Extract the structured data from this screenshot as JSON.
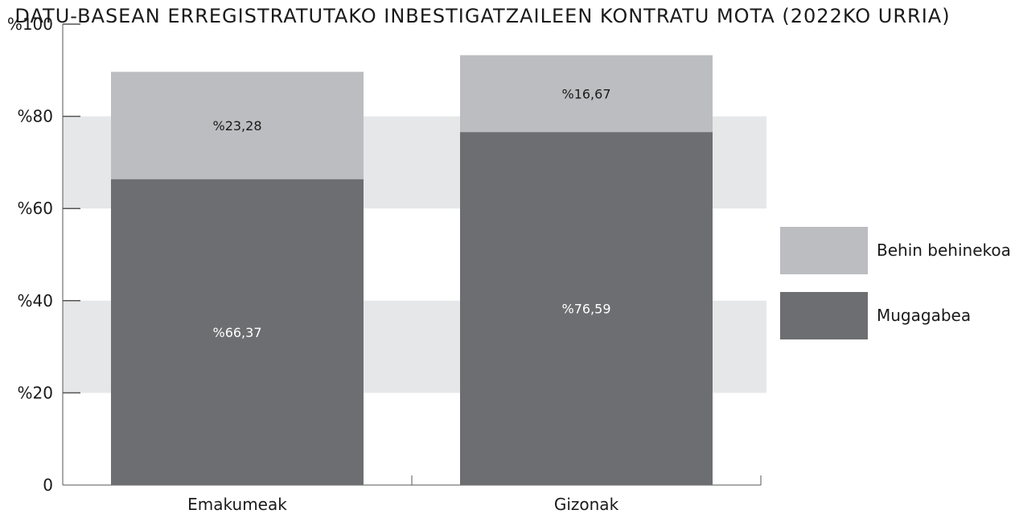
{
  "chart_data": {
    "type": "bar",
    "stacked": true,
    "title": "DATU-BASEAN ERREGISTRATUTAKO INBESTIGATZAILEEN KONTRATU MOTA (2022KO URRIA)",
    "categories": [
      "Emakumeak",
      "Gizonak"
    ],
    "series": [
      {
        "name": "Mugagabea",
        "values": [
          66.37,
          76.59
        ],
        "labels": [
          "%66,37",
          "%76,59"
        ],
        "color": "#6d6e71"
      },
      {
        "name": "Behin behinekoa",
        "values": [
          23.28,
          16.67
        ],
        "labels": [
          "%23,28",
          "%16,67"
        ],
        "color": "#bcbdc0"
      }
    ],
    "ylim": [
      0,
      100
    ],
    "yticks": [
      0,
      20,
      40,
      60,
      80,
      100
    ],
    "ytick_labels": [
      "0",
      "%20",
      "%40",
      "%60",
      "%80",
      "%100"
    ],
    "band_color": "#e6e7e8",
    "legend_position": "right",
    "legend_order": [
      "Behin behinekoa",
      "Mugagabea"
    ]
  }
}
